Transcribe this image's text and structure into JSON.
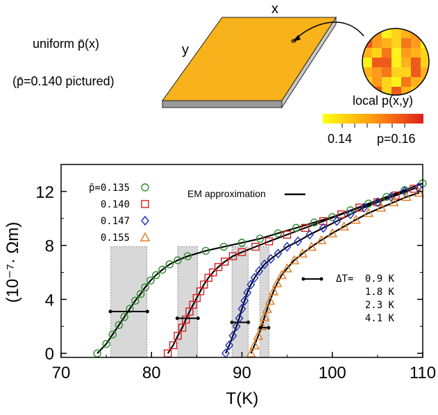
{
  "top": {
    "label_uniform": "uniform p̄(x)",
    "label_pictured": "(p̄=0.140 pictured)",
    "axis_x": "x",
    "axis_y": "y",
    "label_local": "local p(x,y)",
    "colorbar_low": "0.14",
    "colorbar_high": "p=0.16",
    "slab_color": "#F7B21C",
    "colorbar_colors": [
      "#FFFF10",
      "#FF9A10",
      "#E0201A"
    ]
  },
  "chart_data": {
    "type": "scatter",
    "xlabel": "T(K)",
    "ylabel": "(10⁻⁷· Ωm)",
    "xlim": [
      70,
      110
    ],
    "ylim": [
      -0.3,
      14
    ],
    "xticks": [
      70,
      80,
      90,
      100,
      110
    ],
    "yticks": [
      0,
      4,
      8,
      12
    ],
    "line_label": "EM approximation",
    "series": [
      {
        "name": "p̄=0.135",
        "marker": "circle",
        "color": "#2E8B2E",
        "x": [
          74.0,
          75.0,
          75.7,
          76.4,
          77.0,
          77.6,
          78.2,
          78.8,
          79.3,
          79.9,
          80.5,
          81.2,
          82.0,
          82.9,
          84.0,
          86.0,
          88.0,
          90.0,
          92.0,
          94.0,
          96.0,
          98.0,
          100.0,
          102.0,
          104.0,
          106.0,
          108.0,
          110.0
        ],
        "y": [
          0.0,
          0.7,
          1.4,
          2.1,
          2.7,
          3.3,
          3.9,
          4.4,
          4.9,
          5.4,
          5.8,
          6.2,
          6.6,
          6.9,
          7.2,
          7.6,
          7.9,
          8.2,
          8.5,
          8.9,
          9.3,
          9.7,
          10.1,
          10.6,
          11.1,
          11.6,
          12.1,
          12.6
        ]
      },
      {
        "name": "0.140",
        "marker": "square",
        "color": "#D42020",
        "x": [
          81.8,
          82.4,
          82.9,
          83.4,
          83.8,
          84.2,
          84.6,
          85.0,
          85.4,
          85.8,
          86.3,
          86.8,
          87.4,
          88.1,
          89.0,
          90.0,
          91.5,
          93.0,
          95.0,
          97.0,
          99.0,
          101.0,
          103.0,
          105.0,
          107.0,
          109.0
        ],
        "y": [
          0.0,
          0.6,
          1.3,
          1.9,
          2.5,
          3.1,
          3.6,
          4.1,
          4.6,
          5.1,
          5.6,
          6.0,
          6.4,
          6.8,
          7.2,
          7.5,
          7.9,
          8.3,
          8.8,
          9.3,
          9.8,
          10.3,
          10.8,
          11.2,
          11.7,
          12.2
        ]
      },
      {
        "name": "0.147",
        "marker": "diamond",
        "color": "#1A2AC0",
        "x": [
          88.2,
          88.6,
          89.0,
          89.4,
          89.7,
          90.0,
          90.3,
          90.6,
          91.0,
          91.4,
          91.9,
          92.5,
          93.2,
          94.0,
          95.0,
          96.2,
          97.5,
          99.0,
          100.5,
          102.0,
          103.5,
          105.0,
          106.5,
          108.0,
          109.5
        ],
        "y": [
          0.0,
          0.6,
          1.3,
          2.0,
          2.6,
          3.3,
          3.9,
          4.5,
          5.1,
          5.6,
          6.1,
          6.6,
          7.0,
          7.4,
          7.9,
          8.3,
          8.8,
          9.3,
          9.8,
          10.3,
          10.8,
          11.2,
          11.6,
          12.0,
          12.3
        ]
      },
      {
        "name": "0.155",
        "marker": "triangle",
        "color": "#E07A1A",
        "x": [
          91.0,
          91.4,
          91.8,
          92.2,
          92.5,
          92.8,
          93.1,
          93.5,
          93.9,
          94.4,
          95.0,
          95.8,
          96.7,
          97.7,
          98.8,
          100.0,
          101.3,
          102.6,
          104.0,
          105.4,
          106.8,
          108.2,
          109.6
        ],
        "y": [
          0.0,
          0.6,
          1.3,
          2.0,
          2.7,
          3.3,
          3.9,
          4.6,
          5.2,
          5.8,
          6.3,
          6.9,
          7.4,
          7.9,
          8.4,
          8.9,
          9.4,
          9.9,
          10.4,
          10.8,
          11.2,
          11.6,
          11.9
        ]
      }
    ],
    "delta_T": {
      "label_prefix": "ΔT=",
      "labels": [
        "0.9 K",
        "1.8 K",
        "2.3 K",
        "4.1 K"
      ],
      "bars": [
        {
          "x_center": 77.5,
          "width": 4.1,
          "y": 3.1
        },
        {
          "x_center": 84.0,
          "width": 2.3,
          "y": 2.6
        },
        {
          "x_center": 89.8,
          "width": 1.8,
          "y": 2.3
        },
        {
          "x_center": 92.5,
          "width": 0.9,
          "y": 1.9
        }
      ],
      "shaded": [
        [
          75.5,
          79.5
        ],
        [
          82.9,
          85.1
        ],
        [
          88.9,
          90.7
        ],
        [
          92.0,
          93.0
        ]
      ]
    }
  }
}
